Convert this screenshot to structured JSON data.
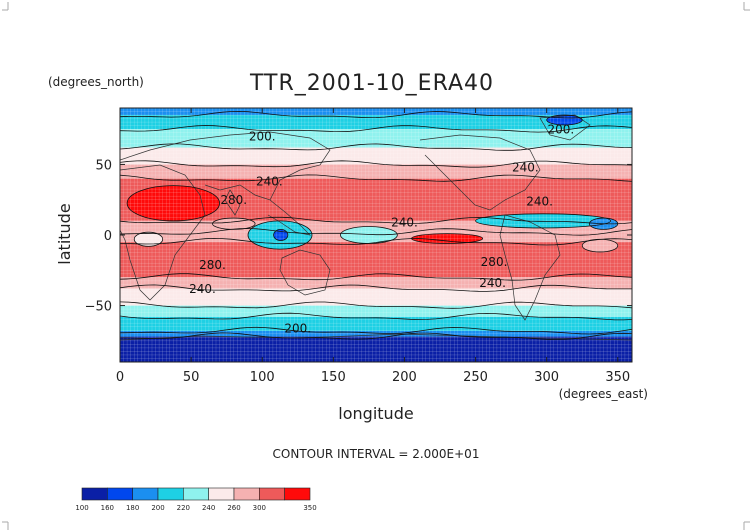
{
  "chart_data": {
    "type": "heatmap",
    "title": "TTR_2001-10_ERA40",
    "xlabel": "longitude",
    "ylabel": "latitude",
    "x_units": "(degrees_east)",
    "y_units": "(degrees_north)",
    "xlim": [
      0,
      360
    ],
    "ylim": [
      -90,
      90
    ],
    "x_ticks": [
      0,
      50,
      100,
      150,
      200,
      250,
      300,
      350
    ],
    "y_ticks": [
      50,
      0,
      -50
    ],
    "contour_labels": [
      {
        "text": "200.",
        "lon": 100,
        "lat": 67
      },
      {
        "text": "200.",
        "lon": 310,
        "lat": 72
      },
      {
        "text": "240.",
        "lon": 105,
        "lat": 35
      },
      {
        "text": "240.",
        "lon": 285,
        "lat": 45
      },
      {
        "text": "240.",
        "lon": 295,
        "lat": 21
      },
      {
        "text": "280.",
        "lon": 80,
        "lat": 22
      },
      {
        "text": "240.",
        "lon": 200,
        "lat": 6
      },
      {
        "text": "280.",
        "lon": 65,
        "lat": -24
      },
      {
        "text": "280.",
        "lon": 263,
        "lat": -22
      },
      {
        "text": "240.",
        "lon": 58,
        "lat": -41
      },
      {
        "text": "240.",
        "lon": 262,
        "lat": -37
      },
      {
        "text": "200.",
        "lon": 125,
        "lat": -69
      }
    ],
    "contour_interval_text": "CONTOUR INTERVAL = 2.000E+01",
    "colorbar": {
      "labels": [
        "100",
        "160",
        "180",
        "200",
        "220",
        "240",
        "260",
        "300",
        "350"
      ],
      "colors": [
        "#0a1fa6",
        "#0047ee",
        "#1b8ff0",
        "#1ed0e4",
        "#8ff2ee",
        "#fbeaea",
        "#f5b1b1",
        "#ee5a5a",
        "#ff0a0a"
      ]
    },
    "bands": [
      {
        "lat_top": 90,
        "lat_bottom": 85,
        "color": "#1b8ff0"
      },
      {
        "lat_top": 85,
        "lat_bottom": 75,
        "color": "#1ed0e4"
      },
      {
        "lat_top": 75,
        "lat_bottom": 62,
        "color": "#8ff2ee"
      },
      {
        "lat_top": 62,
        "lat_bottom": 50,
        "color": "#fbeaea"
      },
      {
        "lat_top": 50,
        "lat_bottom": 40,
        "color": "#f5b1b1"
      },
      {
        "lat_top": 40,
        "lat_bottom": 10,
        "color": "#ee5a5a"
      },
      {
        "lat_top": 10,
        "lat_bottom": 2,
        "color": "#f5b1b1"
      },
      {
        "lat_top": 2,
        "lat_bottom": -5,
        "color": "#f5b1b1"
      },
      {
        "lat_top": -5,
        "lat_bottom": -30,
        "color": "#ee5a5a"
      },
      {
        "lat_top": -30,
        "lat_bottom": -38,
        "color": "#f5b1b1"
      },
      {
        "lat_top": -38,
        "lat_bottom": -50,
        "color": "#fbeaea"
      },
      {
        "lat_top": -50,
        "lat_bottom": -58,
        "color": "#8ff2ee"
      },
      {
        "lat_top": -58,
        "lat_bottom": -68,
        "color": "#1ed0e4"
      },
      {
        "lat_top": -68,
        "lat_bottom": -72,
        "color": "#1b8ff0"
      },
      {
        "lat_top": -72,
        "lat_bottom": -90,
        "color": "#0a1fa6"
      }
    ],
    "patches": [
      {
        "lon": [
          5,
          70
        ],
        "lat": [
          35,
          10
        ],
        "color": "#ff0a0a"
      },
      {
        "lon": [
          90,
          135
        ],
        "lat": [
          10,
          -10
        ],
        "color": "#1ed0e4"
      },
      {
        "lon": [
          108,
          118
        ],
        "lat": [
          4,
          -4
        ],
        "color": "#0047ee"
      },
      {
        "lon": [
          155,
          195
        ],
        "lat": [
          6,
          -6
        ],
        "color": "#8ff2ee"
      },
      {
        "lon": [
          250,
          345
        ],
        "lat": [
          15,
          5
        ],
        "color": "#1ed0e4"
      },
      {
        "lon": [
          330,
          350
        ],
        "lat": [
          12,
          4
        ],
        "color": "#1b8ff0"
      },
      {
        "lon": [
          205,
          255
        ],
        "lat": [
          1,
          -6
        ],
        "color": "#ff0a0a"
      },
      {
        "lon": [
          10,
          30
        ],
        "lat": [
          2,
          -8
        ],
        "color": "#fbeaea"
      },
      {
        "lon": [
          65,
          95
        ],
        "lat": [
          12,
          4
        ],
        "color": "#f5b1b1"
      },
      {
        "lon": [
          300,
          325
        ],
        "lat": [
          85,
          78
        ],
        "color": "#0047ee"
      },
      {
        "lon": [
          325,
          350
        ],
        "lat": [
          -3,
          -12
        ],
        "color": "#f5b1b1"
      }
    ]
  }
}
